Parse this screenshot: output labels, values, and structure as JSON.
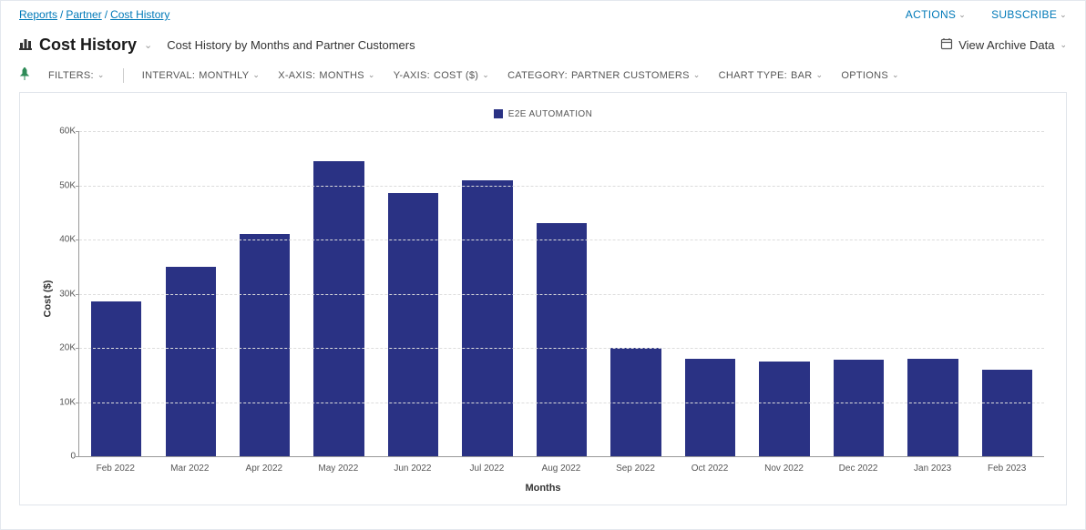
{
  "breadcrumb": {
    "items": [
      "Reports",
      "Partner",
      "Cost History"
    ]
  },
  "top_actions": {
    "actions": "ACTIONS",
    "subscribe": "SUBSCRIBE"
  },
  "header": {
    "title": "Cost History",
    "subtitle": "Cost History by Months and Partner Customers",
    "archive": "View Archive Data"
  },
  "filters": {
    "filters_label": "FILTERS:",
    "interval": {
      "label": "INTERVAL:",
      "value": "MONTHLY"
    },
    "xaxis": {
      "label": "X-AXIS:",
      "value": "MONTHS"
    },
    "yaxis": {
      "label": "Y-AXIS:",
      "value": "COST ($)"
    },
    "category": {
      "label": "CATEGORY:",
      "value": "PARTNER CUSTOMERS"
    },
    "chart_type": {
      "label": "CHART TYPE:",
      "value": "BAR"
    },
    "options_label": "OPTIONS"
  },
  "chart": {
    "type": "bar",
    "legend_label": "E2E AUTOMATION",
    "series_color": "#2a3284",
    "background_color": "#ffffff",
    "grid_color": "#dcdcdc",
    "axis_color": "#999999",
    "xaxis_title": "Months",
    "yaxis_title": "Cost ($)",
    "ylim": [
      0,
      60000
    ],
    "ytick_step": 10000,
    "ytick_labels": [
      "0",
      "10K",
      "20K",
      "30K",
      "40K",
      "50K",
      "60K"
    ],
    "categories": [
      "Feb 2022",
      "Mar 2022",
      "Apr 2022",
      "May 2022",
      "Jun 2022",
      "Jul 2022",
      "Aug 2022",
      "Sep 2022",
      "Oct 2022",
      "Nov 2022",
      "Dec 2022",
      "Jan 2023",
      "Feb 2023"
    ],
    "values": [
      28500,
      35000,
      41000,
      54500,
      48500,
      51000,
      43000,
      20000,
      18000,
      17500,
      17800,
      18000,
      16000
    ],
    "label_fontsize": 10,
    "axis_title_fontsize": 11,
    "bar_width": 0.68
  }
}
